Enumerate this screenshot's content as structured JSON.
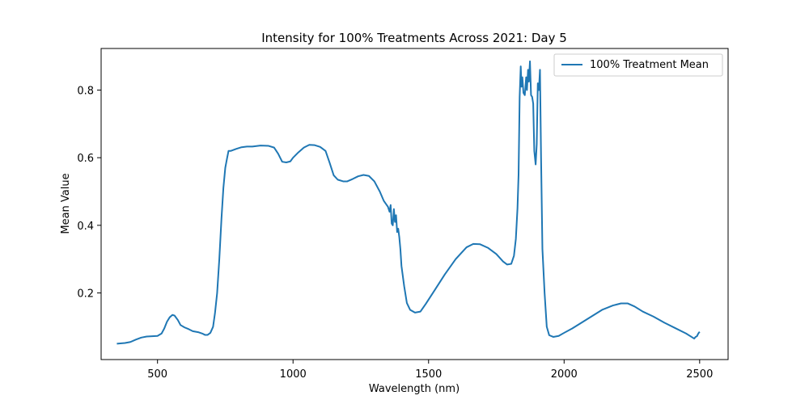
{
  "chart_data": {
    "type": "line",
    "title": "Intensity for 100% Treatments Across 2021: Day 5",
    "xlabel": "Wavelength (nm)",
    "ylabel": "Mean Value",
    "xlim": [
      292,
      2605
    ],
    "ylim": [
      0.003,
      0.923
    ],
    "xticks": [
      500,
      1000,
      1500,
      2000,
      2500
    ],
    "xtick_labels": [
      "500",
      "1000",
      "1500",
      "2000",
      "2500"
    ],
    "yticks": [
      0.2,
      0.4,
      0.6,
      0.8
    ],
    "ytick_labels": [
      "0.2",
      "0.4",
      "0.6",
      "0.8"
    ],
    "grid": false,
    "legend_position": "top-right",
    "series": [
      {
        "name": "100% Treatment Mean",
        "color": "#1f77b4",
        "points": [
          [
            350,
            0.05
          ],
          [
            380,
            0.052
          ],
          [
            400,
            0.055
          ],
          [
            420,
            0.062
          ],
          [
            440,
            0.068
          ],
          [
            460,
            0.071
          ],
          [
            480,
            0.072
          ],
          [
            500,
            0.073
          ],
          [
            515,
            0.08
          ],
          [
            525,
            0.095
          ],
          [
            535,
            0.115
          ],
          [
            545,
            0.128
          ],
          [
            555,
            0.135
          ],
          [
            563,
            0.133
          ],
          [
            575,
            0.12
          ],
          [
            585,
            0.105
          ],
          [
            600,
            0.098
          ],
          [
            615,
            0.093
          ],
          [
            630,
            0.087
          ],
          [
            650,
            0.084
          ],
          [
            665,
            0.08
          ],
          [
            675,
            0.076
          ],
          [
            685,
            0.076
          ],
          [
            695,
            0.082
          ],
          [
            705,
            0.1
          ],
          [
            712,
            0.14
          ],
          [
            720,
            0.2
          ],
          [
            728,
            0.3
          ],
          [
            736,
            0.42
          ],
          [
            743,
            0.51
          ],
          [
            750,
            0.57
          ],
          [
            757,
            0.6
          ],
          [
            762,
            0.62
          ],
          [
            770,
            0.62
          ],
          [
            790,
            0.626
          ],
          [
            810,
            0.631
          ],
          [
            830,
            0.633
          ],
          [
            850,
            0.633
          ],
          [
            880,
            0.636
          ],
          [
            910,
            0.635
          ],
          [
            930,
            0.63
          ],
          [
            945,
            0.612
          ],
          [
            960,
            0.588
          ],
          [
            975,
            0.586
          ],
          [
            990,
            0.589
          ],
          [
            1000,
            0.6
          ],
          [
            1020,
            0.616
          ],
          [
            1040,
            0.63
          ],
          [
            1060,
            0.638
          ],
          [
            1080,
            0.637
          ],
          [
            1100,
            0.632
          ],
          [
            1120,
            0.62
          ],
          [
            1135,
            0.585
          ],
          [
            1150,
            0.548
          ],
          [
            1165,
            0.535
          ],
          [
            1185,
            0.53
          ],
          [
            1200,
            0.53
          ],
          [
            1220,
            0.537
          ],
          [
            1240,
            0.545
          ],
          [
            1260,
            0.549
          ],
          [
            1280,
            0.546
          ],
          [
            1300,
            0.53
          ],
          [
            1320,
            0.5
          ],
          [
            1335,
            0.472
          ],
          [
            1350,
            0.455
          ],
          [
            1356,
            0.44
          ],
          [
            1360,
            0.46
          ],
          [
            1364,
            0.405
          ],
          [
            1368,
            0.4
          ],
          [
            1372,
            0.448
          ],
          [
            1376,
            0.41
          ],
          [
            1380,
            0.43
          ],
          [
            1384,
            0.38
          ],
          [
            1388,
            0.39
          ],
          [
            1392,
            0.365
          ],
          [
            1396,
            0.33
          ],
          [
            1400,
            0.28
          ],
          [
            1410,
            0.22
          ],
          [
            1420,
            0.17
          ],
          [
            1432,
            0.15
          ],
          [
            1450,
            0.142
          ],
          [
            1470,
            0.145
          ],
          [
            1490,
            0.168
          ],
          [
            1520,
            0.205
          ],
          [
            1560,
            0.255
          ],
          [
            1600,
            0.3
          ],
          [
            1640,
            0.335
          ],
          [
            1665,
            0.345
          ],
          [
            1690,
            0.344
          ],
          [
            1720,
            0.333
          ],
          [
            1750,
            0.315
          ],
          [
            1775,
            0.293
          ],
          [
            1790,
            0.284
          ],
          [
            1805,
            0.286
          ],
          [
            1815,
            0.31
          ],
          [
            1822,
            0.36
          ],
          [
            1828,
            0.45
          ],
          [
            1832,
            0.55
          ],
          [
            1836,
            0.78
          ],
          [
            1840,
            0.87
          ],
          [
            1843,
            0.81
          ],
          [
            1846,
            0.838
          ],
          [
            1850,
            0.792
          ],
          [
            1855,
            0.785
          ],
          [
            1860,
            0.838
          ],
          [
            1863,
            0.8
          ],
          [
            1867,
            0.86
          ],
          [
            1870,
            0.825
          ],
          [
            1874,
            0.885
          ],
          [
            1878,
            0.785
          ],
          [
            1882,
            0.78
          ],
          [
            1886,
            0.76
          ],
          [
            1890,
            0.62
          ],
          [
            1895,
            0.58
          ],
          [
            1899,
            0.64
          ],
          [
            1903,
            0.82
          ],
          [
            1907,
            0.8
          ],
          [
            1911,
            0.86
          ],
          [
            1915,
            0.6
          ],
          [
            1920,
            0.33
          ],
          [
            1928,
            0.2
          ],
          [
            1936,
            0.1
          ],
          [
            1945,
            0.075
          ],
          [
            1960,
            0.07
          ],
          [
            1980,
            0.073
          ],
          [
            2000,
            0.082
          ],
          [
            2030,
            0.095
          ],
          [
            2060,
            0.11
          ],
          [
            2100,
            0.13
          ],
          [
            2140,
            0.15
          ],
          [
            2180,
            0.163
          ],
          [
            2210,
            0.169
          ],
          [
            2235,
            0.169
          ],
          [
            2260,
            0.16
          ],
          [
            2290,
            0.145
          ],
          [
            2330,
            0.13
          ],
          [
            2370,
            0.112
          ],
          [
            2410,
            0.096
          ],
          [
            2450,
            0.08
          ],
          [
            2470,
            0.07
          ],
          [
            2480,
            0.065
          ],
          [
            2485,
            0.07
          ],
          [
            2490,
            0.072
          ],
          [
            2495,
            0.08
          ],
          [
            2500,
            0.085
          ]
        ]
      }
    ]
  }
}
